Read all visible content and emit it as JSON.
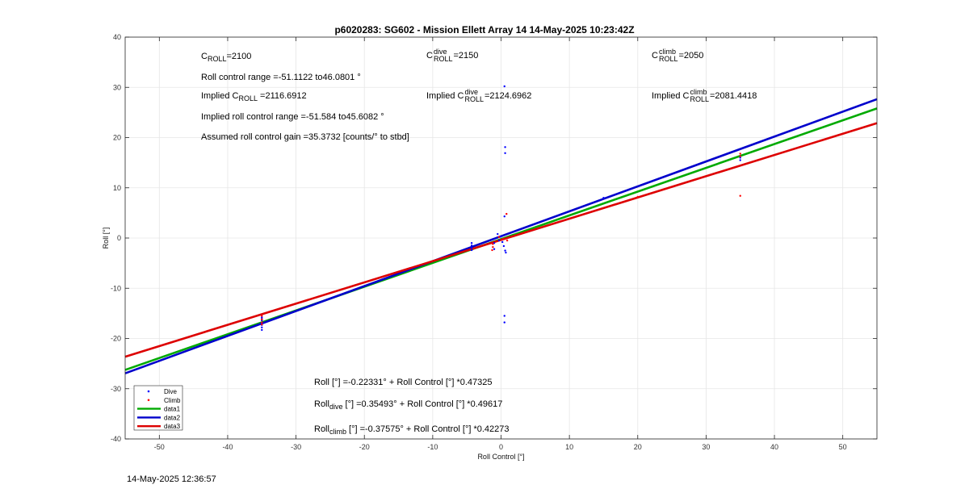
{
  "chart_data": {
    "type": "scatter",
    "title": "p6020283: SG602 - Mission Ellett Array 14 14-May-2025 10:23:42Z",
    "xlabel": "Roll Control [°]",
    "ylabel": "Roll [°]",
    "xlim": [
      -55,
      55
    ],
    "ylim": [
      -40,
      40
    ],
    "xticks": [
      -50,
      -40,
      -30,
      -20,
      -10,
      0,
      10,
      20,
      30,
      40,
      50
    ],
    "yticks": [
      -40,
      -30,
      -20,
      -10,
      0,
      10,
      20,
      30,
      40
    ],
    "grid": true,
    "legend_position": "bottom-left",
    "series": [
      {
        "name": "Dive",
        "kind": "points",
        "color": "#0000ff",
        "points": [
          [
            -35,
            -15.8
          ],
          [
            -35,
            -16.4
          ],
          [
            -35,
            -16.9
          ],
          [
            -35,
            -17.3
          ],
          [
            -35,
            -17.8
          ],
          [
            -35,
            -18.3
          ],
          [
            -35,
            -16.1
          ],
          [
            -35,
            -17.0
          ],
          [
            -4.3,
            -1.0
          ],
          [
            -4.3,
            -1.5
          ],
          [
            -4.3,
            -2.0
          ],
          [
            -4.3,
            -2.4
          ],
          [
            -1.0,
            -1.0
          ],
          [
            -1.0,
            -2.2
          ],
          [
            -0.5,
            0.8
          ],
          [
            -0.3,
            -0.5
          ],
          [
            0.0,
            0.3
          ],
          [
            0.2,
            -0.8
          ],
          [
            0.4,
            -1.6
          ],
          [
            0.5,
            30.2
          ],
          [
            0.6,
            18.1
          ],
          [
            0.6,
            16.9
          ],
          [
            0.5,
            4.3
          ],
          [
            0.6,
            -2.5
          ],
          [
            0.7,
            -2.9
          ],
          [
            0.5,
            -15.5
          ],
          [
            0.5,
            -16.8
          ],
          [
            15.0,
            8.0
          ],
          [
            35.0,
            16.0
          ],
          [
            35.0,
            15.5
          ]
        ]
      },
      {
        "name": "Climb",
        "kind": "points",
        "color": "#ff0000",
        "points": [
          [
            -35,
            -15.5
          ],
          [
            -35,
            -16.2
          ],
          [
            -35,
            -16.8
          ],
          [
            -35,
            -17.2
          ],
          [
            -1.2,
            -1.2
          ],
          [
            -1.2,
            -1.8
          ],
          [
            -1.3,
            -2.4
          ],
          [
            0.8,
            4.8
          ],
          [
            0.9,
            -0.5
          ],
          [
            0.3,
            -0.2
          ],
          [
            -0.3,
            0.2
          ],
          [
            20.0,
            8.2
          ],
          [
            35.0,
            8.4
          ],
          [
            35.0,
            16.8
          ],
          [
            35.0,
            16.3
          ]
        ]
      },
      {
        "name": "data1",
        "kind": "line",
        "color": "#00aa00",
        "intercept": -0.22331,
        "slope": 0.47325
      },
      {
        "name": "data2",
        "kind": "line",
        "color": "#0000cc",
        "intercept": 0.35493,
        "slope": 0.49617
      },
      {
        "name": "data3",
        "kind": "line",
        "color": "#dd0000",
        "intercept": -0.37575,
        "slope": 0.42273
      }
    ],
    "legend": [
      "Dive",
      "Climb",
      "data1",
      "data2",
      "data3"
    ]
  },
  "annotations": {
    "c_letter": "C",
    "roll_sub": "ROLL",
    "dive_sup": "dive",
    "climb_sup": "climb",
    "croll_val": "=2100",
    "croll_dive_val": "=2150",
    "croll_climb_val": "=2050",
    "roll_range": "Roll control range =-51.1122 to46.0801 °",
    "implied_prefix": "Implied C",
    "implied_val": " =2116.6912",
    "implied_dive_val": "=2124.6962",
    "implied_climb_val": "=2081.4418",
    "implied_range": "Implied roll control range =-51.584 to45.6082 °",
    "gain": "Assumed roll control gain =35.3732 [counts/° to stbd]",
    "fit_all": "Roll [°] =-0.22331° + Roll Control [°] *0.47325",
    "roll_word": "Roll",
    "dive_sub": "dive",
    "climb_sub": "climb",
    "fit_dive_rest": " [°] =0.35493° + Roll Control [°] *0.49617",
    "fit_climb_rest": " [°] =-0.37575° + Roll Control [°] *0.42273"
  },
  "timestamp": "14-May-2025 12:36:57"
}
